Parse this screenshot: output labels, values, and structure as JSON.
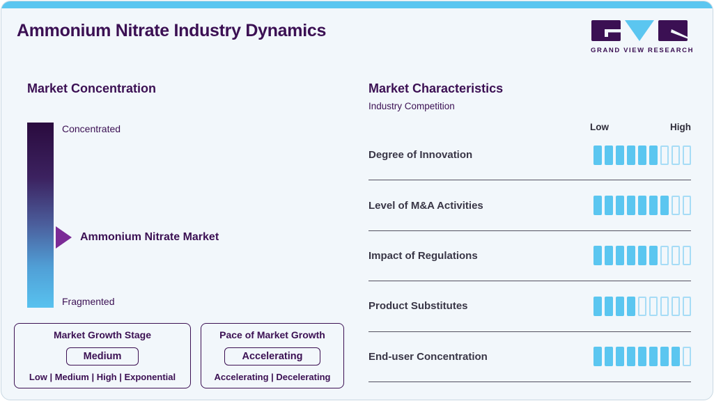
{
  "header": {
    "title": "Ammonium Nitrate Industry Dynamics",
    "logo_text": "GRAND VIEW RESEARCH"
  },
  "colors": {
    "accent_blue": "#5BC6F0",
    "brand_purple": "#3B1053",
    "arrow_purple": "#7B2B96",
    "gradient_top": "#2A0B3E",
    "gradient_bottom": "#58C2EF",
    "empty_segment_border": "#A6DCF6",
    "background": "#F2F7FB"
  },
  "market_concentration": {
    "title": "Market Concentration",
    "scale_top": "Concentrated",
    "scale_bottom": "Fragmented",
    "marker_label": "Ammonium Nitrate Market",
    "growth_stage": {
      "title": "Market Growth Stage",
      "value": "Medium",
      "options": "Low | Medium | High | Exponential"
    },
    "growth_pace": {
      "title": "Pace of Market Growth",
      "value": "Accelerating",
      "options": "Accelerating | Decelerating"
    }
  },
  "market_characteristics": {
    "title": "Market Characteristics",
    "subtitle": "Industry Competition",
    "scale_low": "Low",
    "scale_high": "High"
  },
  "chart_data": {
    "type": "bar",
    "title": "Market Characteristics — Industry Competition",
    "categories": [
      "Degree of Innovation",
      "Level of M&A Activities",
      "Impact of Regulations",
      "Product Substitutes",
      "End-user Concentration"
    ],
    "values": [
      6,
      7,
      6,
      4,
      8
    ],
    "scale_max": 9,
    "scale_labels": [
      "Low",
      "High"
    ],
    "legend_position": "none",
    "annotations": {
      "market_concentration_axis": [
        "Concentrated",
        "Fragmented"
      ],
      "market_position_marker": "Ammonium Nitrate Market",
      "market_growth_stage": "Medium",
      "pace_of_market_growth": "Accelerating"
    }
  }
}
